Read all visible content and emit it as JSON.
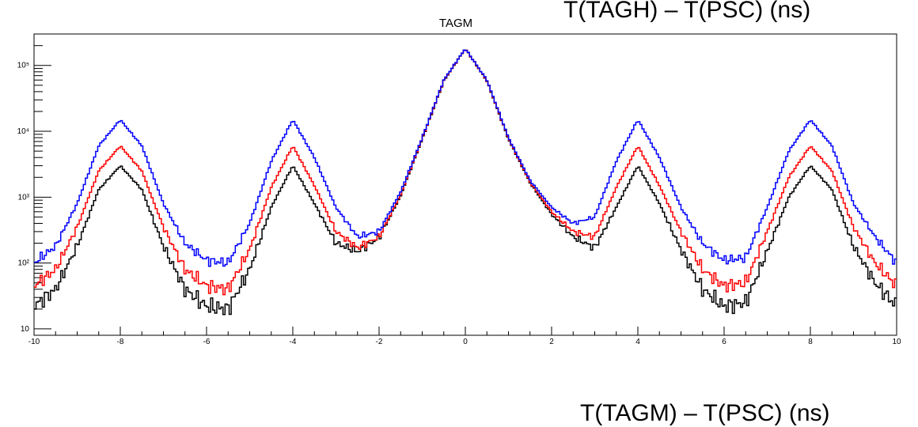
{
  "page": {
    "top_caption": "T(TAGH) – T(PSC)     (ns)",
    "bottom_caption": "T(TAGM) – T(PSC)     (ns)"
  },
  "chart_data": {
    "type": "line",
    "title": "TAGM",
    "xlabel": "",
    "ylabel": "",
    "xlim": [
      -10,
      10
    ],
    "ylim": [
      8,
      300000
    ],
    "yscale": "log",
    "x_ticks": [
      -10,
      -8,
      -6,
      -4,
      -2,
      0,
      2,
      4,
      6,
      8,
      10
    ],
    "x_tick_labels": [
      "-10",
      "-8",
      "-6",
      "-4",
      "-2",
      "0",
      "2",
      "4",
      "6",
      "8",
      "10"
    ],
    "y_ticks": [
      10,
      100,
      1000,
      10000,
      100000
    ],
    "y_tick_labels": [
      "10",
      "10²",
      "10³",
      "10⁴",
      "10⁵"
    ],
    "grid": false,
    "x": [
      -10,
      -9.5,
      -9,
      -8.5,
      -8,
      -7.5,
      -7,
      -6.5,
      -6,
      -5.5,
      -5,
      -4.5,
      -4,
      -3.5,
      -3,
      -2.5,
      -2,
      -1.5,
      -1,
      -0.5,
      0,
      0.5,
      1,
      1.5,
      2,
      2.5,
      3,
      3.5,
      4,
      4.5,
      5,
      5.5,
      6,
      6.5,
      7,
      7.5,
      8,
      8.5,
      9,
      9.5,
      10
    ],
    "series": [
      {
        "color": "#0000ff",
        "values": [
          100,
          180,
          800,
          6000,
          15000,
          6000,
          800,
          200,
          110,
          100,
          400,
          3500,
          15000,
          4000,
          700,
          250,
          300,
          1200,
          8000,
          60000,
          180000,
          60000,
          8000,
          1800,
          700,
          400,
          500,
          3500,
          15000,
          4000,
          700,
          200,
          110,
          120,
          700,
          5000,
          15000,
          6000,
          800,
          250,
          100
        ]
      },
      {
        "color": "#ff0000",
        "values": [
          45,
          80,
          350,
          2500,
          6000,
          2500,
          350,
          80,
          45,
          40,
          160,
          1400,
          6000,
          1500,
          300,
          170,
          250,
          1100,
          7800,
          59000,
          180000,
          59000,
          7800,
          1700,
          600,
          300,
          250,
          1400,
          6000,
          1500,
          300,
          80,
          45,
          50,
          300,
          2000,
          6000,
          2500,
          350,
          100,
          45
        ]
      },
      {
        "color": "#000000",
        "values": [
          22,
          40,
          180,
          1300,
          3000,
          1300,
          180,
          40,
          22,
          20,
          80,
          700,
          3000,
          800,
          200,
          150,
          240,
          1050,
          7600,
          58000,
          180000,
          58000,
          7600,
          1650,
          550,
          250,
          170,
          700,
          3000,
          800,
          160,
          40,
          22,
          25,
          150,
          1000,
          3000,
          1300,
          180,
          50,
          22
        ]
      }
    ]
  }
}
